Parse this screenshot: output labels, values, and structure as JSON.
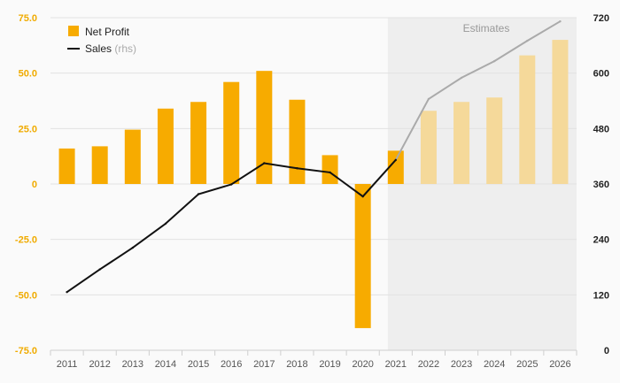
{
  "chart_data": {
    "type": "bar",
    "categories": [
      "2011",
      "2012",
      "2013",
      "2014",
      "2015",
      "2016",
      "2017",
      "2018",
      "2019",
      "2020",
      "2021",
      "2022",
      "2023",
      "2024",
      "2025",
      "2026"
    ],
    "series": [
      {
        "name": "Net Profit",
        "type": "bar",
        "axis": "left",
        "values": [
          16,
          17,
          24.5,
          34,
          37,
          46,
          51,
          38,
          13,
          -65,
          15,
          33,
          37,
          39,
          58,
          65
        ]
      },
      {
        "name": "Sales",
        "name_suffix": "(rhs)",
        "type": "line",
        "axis": "right",
        "values": [
          126,
          175,
          222,
          274,
          338,
          359,
          405,
          394,
          385,
          333,
          412,
          544,
          590,
          626,
          670,
          712
        ]
      }
    ],
    "estimates_from_index": 11,
    "estimates_label": "Estimates",
    "y_left": {
      "min": -75,
      "max": 75,
      "ticks": [
        "75.0",
        "50.0",
        "25.0",
        "0",
        "-25.0",
        "-50.0",
        "-75.0"
      ]
    },
    "y_right": {
      "min": 0,
      "max": 720,
      "ticks": [
        "720",
        "600",
        "480",
        "360",
        "240",
        "120",
        "0"
      ]
    },
    "grid": true,
    "legend_position": "top-left",
    "colors": {
      "bar": "#f7ab00",
      "bar_estimate": "#f5d99a",
      "line": "#111111",
      "line_estimate": "#aaaaaa",
      "shade": "#eeeeee",
      "left_axis": "#f0ab00",
      "right_axis": "#222222"
    }
  }
}
